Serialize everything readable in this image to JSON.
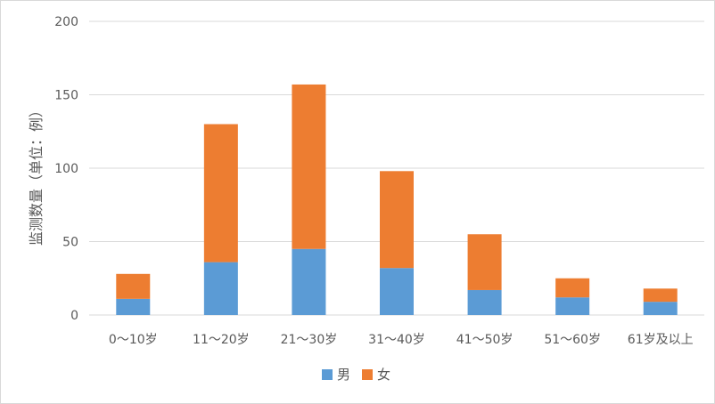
{
  "chart_data": {
    "type": "bar",
    "stacked": true,
    "title": "",
    "xlabel": "",
    "ylabel": "监测数量（单位：例）",
    "ylim": [
      0,
      200
    ],
    "yticks": [
      0,
      50,
      100,
      150,
      200
    ],
    "grid": true,
    "legend_position": "bottom",
    "categories": [
      "0～10岁",
      "11～20岁",
      "21～30岁",
      "31～40岁",
      "41～50岁",
      "51～60岁",
      "61岁及以上"
    ],
    "series": [
      {
        "name": "男",
        "color": "#5b9bd5",
        "values": [
          11,
          36,
          45,
          32,
          17,
          12,
          9
        ]
      },
      {
        "name": "女",
        "color": "#ed7d31",
        "values": [
          17,
          94,
          112,
          66,
          38,
          13,
          9
        ]
      }
    ]
  }
}
